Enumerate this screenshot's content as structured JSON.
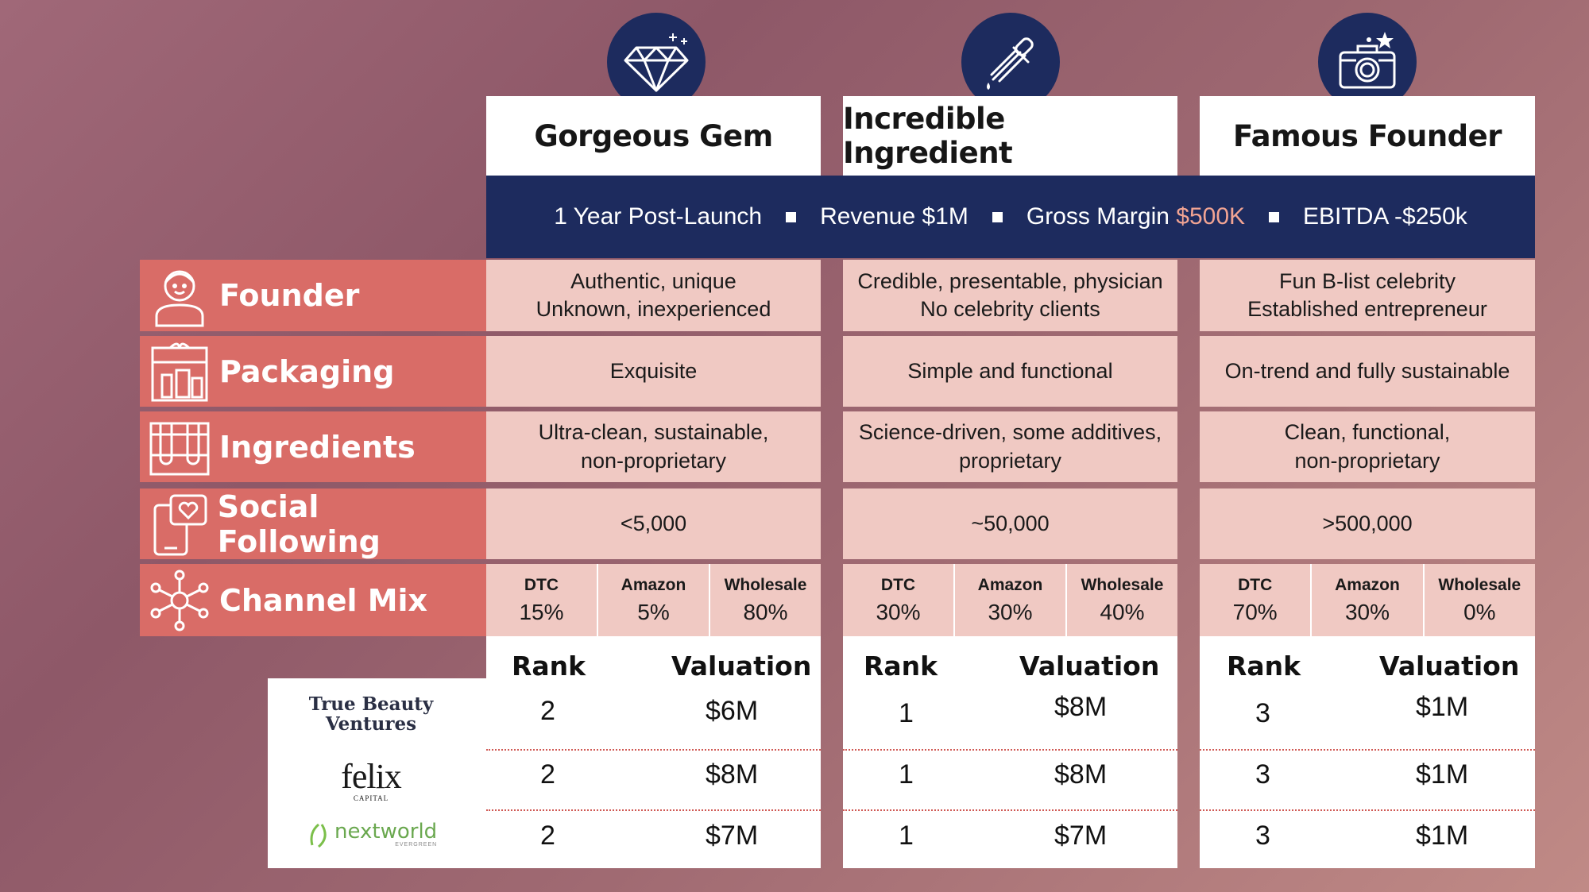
{
  "columns": [
    {
      "title": "Gorgeous Gem",
      "icon": "diamond-icon",
      "founder": [
        "Authentic, unique",
        "Unknown, inexperienced"
      ],
      "packaging": "Exquisite",
      "ingredients": [
        "Ultra-clean, sustainable,",
        "non-proprietary"
      ],
      "social": "<5,000",
      "channels": [
        {
          "label": "DTC",
          "value": "15%"
        },
        {
          "label": "Amazon",
          "value": "5%"
        },
        {
          "label": "Wholesale",
          "value": "80%"
        }
      ],
      "ranks": [
        "2",
        "2",
        "2"
      ],
      "valuations": [
        "$6M",
        "$8M",
        "$7M"
      ]
    },
    {
      "title": "Incredible Ingredient",
      "icon": "dropper-icon",
      "founder": [
        "Credible, presentable, physician",
        "No celebrity clients"
      ],
      "packaging": "Simple and functional",
      "ingredients": [
        "Science-driven, some additives,",
        "proprietary"
      ],
      "social": "~50,000",
      "channels": [
        {
          "label": "DTC",
          "value": "30%"
        },
        {
          "label": "Amazon",
          "value": "30%"
        },
        {
          "label": "Wholesale",
          "value": "40%"
        }
      ],
      "ranks": [
        "1",
        "1",
        "1"
      ],
      "valuations": [
        "$8M",
        "$8M",
        "$7M"
      ]
    },
    {
      "title": "Famous Founder",
      "icon": "camera-icon",
      "founder": [
        "Fun B-list celebrity",
        "Established entrepreneur"
      ],
      "packaging": "On-trend and fully sustainable",
      "ingredients": [
        "Clean, functional,",
        "non-proprietary"
      ],
      "social": ">500,000",
      "channels": [
        {
          "label": "DTC",
          "value": "70%"
        },
        {
          "label": "Amazon",
          "value": "30%"
        },
        {
          "label": "Wholesale",
          "value": "0%"
        }
      ],
      "ranks": [
        "3",
        "3",
        "3"
      ],
      "valuations": [
        "$1M",
        "$1M",
        "$1M"
      ]
    }
  ],
  "banner": {
    "period": "1 Year Post-Launch",
    "revenue": "Revenue $1M",
    "gm_label": "Gross Margin ",
    "gm_value": "$500K",
    "ebitda": "EBITDA -$250k",
    "highlight_color": "#f2a493"
  },
  "row_labels": {
    "founder": "Founder",
    "packaging": "Packaging",
    "ingredients": "Ingredients",
    "social": "Social Following",
    "channel": "Channel Mix"
  },
  "rank_header": "Rank",
  "valuation_header": "Valuation",
  "investors": {
    "tbv_line1": "True Beauty",
    "tbv_line2": "Ventures",
    "felix": "felix",
    "felix_sub": "CAPITAL",
    "nextworld": "nextworld",
    "nextworld_sub": "EVERGREEN"
  },
  "colors": {
    "navy": "#1d2b5e",
    "coral": "#d96c67",
    "pink": "#f0c9c3"
  }
}
